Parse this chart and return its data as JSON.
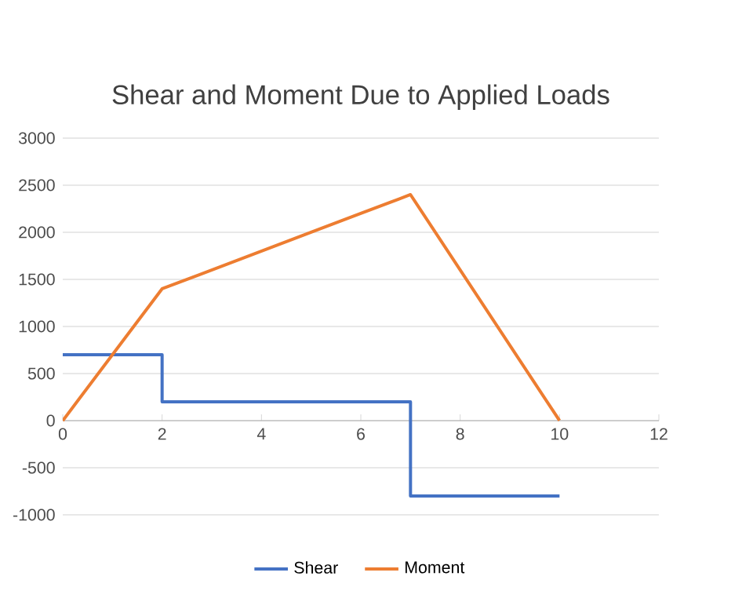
{
  "chart_data": {
    "type": "line",
    "title": "Shear and Moment Due to Applied Loads",
    "series": [
      {
        "name": "Shear",
        "color": "#4472c4",
        "x": [
          0,
          2,
          2,
          7,
          7,
          10
        ],
        "values": [
          700,
          700,
          200,
          200,
          -800,
          -800
        ]
      },
      {
        "name": "Moment",
        "color": "#ed7d31",
        "x": [
          0,
          2,
          5,
          6,
          7,
          10
        ],
        "values": [
          0,
          1400,
          2000,
          2200,
          2400,
          0
        ]
      }
    ],
    "xlim": [
      0,
      12
    ],
    "xticks": [
      0,
      2,
      4,
      6,
      8,
      10,
      12
    ],
    "ylim": [
      -1000,
      3000
    ],
    "yticks": [
      -1000,
      -500,
      0,
      500,
      1000,
      1500,
      2000,
      2500,
      3000
    ],
    "grid": "y",
    "legend": "bottom",
    "marker": "none",
    "line_style": "solid"
  }
}
